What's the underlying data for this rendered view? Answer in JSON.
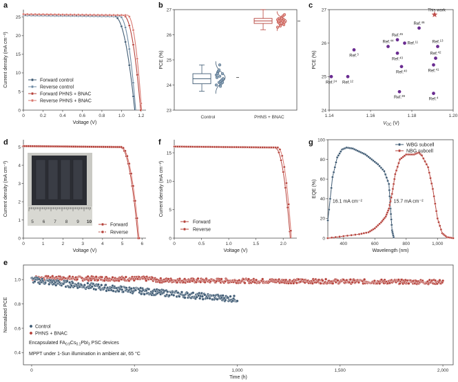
{
  "colors": {
    "control": "#3e5a73",
    "control_light": "#6e8aa3",
    "phns": "#b5413a",
    "phns_light": "#d9776f",
    "star": "#c0504d",
    "ref": "#6a2c91"
  },
  "chart_data": [
    {
      "id": "a",
      "letter": "a",
      "type": "line",
      "xlabel": "Voltage (V)",
      "ylabel": "Current density (mA cm⁻²)",
      "xlim": [
        0,
        1.25
      ],
      "ylim": [
        0,
        27
      ],
      "xticks": [
        "0",
        "0.2",
        "0.4",
        "0.6",
        "0.8",
        "1.0",
        "1.2"
      ],
      "yticks": [
        "0",
        "5",
        "10",
        "15",
        "20",
        "25"
      ],
      "legend_position": "bottom-left",
      "series": [
        {
          "name": "Forward control",
          "jsc": 25.4,
          "voc": 1.135,
          "knee": 0.93
        },
        {
          "name": "Reverse control",
          "jsc": 25.5,
          "voc": 1.145,
          "knee": 0.98
        },
        {
          "name": "Forward PHNS + BNAC",
          "jsc": 25.7,
          "voc": 1.195,
          "knee": 1.02
        },
        {
          "name": "Reverse PHNS + BNAC",
          "jsc": 25.8,
          "voc": 1.205,
          "knee": 1.06
        }
      ]
    },
    {
      "id": "b",
      "letter": "b",
      "type": "box",
      "ylabel": "PCE (%)",
      "ylim": [
        23,
        27
      ],
      "yticks": [
        "23",
        "24",
        "25",
        "26",
        "27"
      ],
      "categories": [
        "Control",
        "PHNS + BNAC"
      ],
      "box_stats": [
        {
          "min": 23.75,
          "q1": 24.05,
          "median": 24.25,
          "q3": 24.45,
          "max": 24.8
        },
        {
          "min": 26.2,
          "q1": 26.45,
          "median": 26.55,
          "q3": 26.65,
          "max": 27.0
        }
      ],
      "scatter": [
        [
          24.0,
          24.1,
          24.2,
          24.3,
          24.35,
          24.45,
          24.5,
          24.15,
          24.25,
          24.55,
          24.05,
          24.4,
          24.6,
          24.2,
          24.3,
          24.8,
          24.1,
          24.45,
          23.95,
          24.25
        ],
        [
          26.3,
          26.4,
          26.45,
          26.5,
          26.55,
          26.6,
          26.65,
          26.7,
          26.5,
          26.45,
          26.55,
          26.6,
          26.35,
          26.75,
          26.5,
          26.6,
          26.4,
          26.55,
          26.65,
          26.8
        ]
      ]
    },
    {
      "id": "c",
      "letter": "c",
      "type": "scatter",
      "xlabel": "V_OC (V)",
      "ylabel": "PCE (%)",
      "xlim": [
        1.14,
        1.2
      ],
      "ylim": [
        24,
        27
      ],
      "xticks": [
        "1.14",
        "1.16",
        "1.18",
        "1.20"
      ],
      "yticks": [
        "24",
        "25",
        "26",
        "27"
      ],
      "points": [
        {
          "label": "Ref.24",
          "x": 1.141,
          "y": 25.0,
          "ref": "Ref.",
          "sup": "24",
          "lpos": "below"
        },
        {
          "label": "Ref.12",
          "x": 1.149,
          "y": 25.0,
          "ref": "Ref.",
          "sup": "12",
          "lpos": "below"
        },
        {
          "label": "Ref.3",
          "x": 1.152,
          "y": 25.8,
          "ref": "Ref.",
          "sup": "3",
          "lpos": "below"
        },
        {
          "label": "Ref.44",
          "x": 1.1685,
          "y": 25.9,
          "ref": "Ref.",
          "sup": "44",
          "lpos": "above"
        },
        {
          "label": "Ref.45",
          "x": 1.173,
          "y": 26.1,
          "ref": "Ref.",
          "sup": "45",
          "lpos": "above"
        },
        {
          "label": "Ref.11",
          "x": 1.1765,
          "y": 26.0,
          "ref": "Ref.",
          "sup": "11",
          "lpos": "right"
        },
        {
          "label": "Ref.46",
          "x": 1.1835,
          "y": 26.45,
          "ref": "Ref.",
          "sup": "46",
          "lpos": "above"
        },
        {
          "label": "Ref.43",
          "x": 1.173,
          "y": 25.7,
          "ref": "Ref.",
          "sup": "43",
          "lpos": "below"
        },
        {
          "label": "Ref.40",
          "x": 1.175,
          "y": 25.3,
          "ref": "Ref.",
          "sup": "40",
          "lpos": "below"
        },
        {
          "label": "Ref.39",
          "x": 1.174,
          "y": 24.55,
          "ref": "Ref.",
          "sup": "39",
          "lpos": "below"
        },
        {
          "label": "Ref.42",
          "x": 1.1915,
          "y": 25.55,
          "ref": "Ref.",
          "sup": "42",
          "lpos": "above"
        },
        {
          "label": "Ref.13",
          "x": 1.1925,
          "y": 25.9,
          "ref": "Ref.",
          "sup": "13",
          "lpos": "above"
        },
        {
          "label": "Ref.41",
          "x": 1.1905,
          "y": 25.35,
          "ref": "Ref.",
          "sup": "41",
          "lpos": "below"
        },
        {
          "label": "Ref.4",
          "x": 1.1905,
          "y": 24.5,
          "ref": "Ref.",
          "sup": "4",
          "lpos": "below"
        }
      ],
      "highlight": {
        "label": "This work",
        "x": 1.191,
        "y": 26.85
      }
    },
    {
      "id": "d",
      "letter": "d",
      "type": "line",
      "xlabel": "Voltage (V)",
      "ylabel": "Current density (mA cm⁻²)",
      "xlim": [
        0,
        6.2
      ],
      "ylim": [
        0,
        5.4
      ],
      "xticks": [
        "0",
        "1",
        "2",
        "3",
        "4",
        "5",
        "6"
      ],
      "yticks": [
        "0",
        "1",
        "2",
        "3",
        "4",
        "5"
      ],
      "legend_position": "bottom-right",
      "inset_ruler_labels": [
        "5",
        "6",
        "7",
        "8",
        "9",
        "10"
      ],
      "series": [
        {
          "name": "Forward",
          "jsc": 5.05,
          "voc": 5.8,
          "knee": 4.9
        },
        {
          "name": "Reverse",
          "jsc": 5.05,
          "voc": 5.85,
          "knee": 4.95
        }
      ]
    },
    {
      "id": "f",
      "letter": "f",
      "type": "line",
      "xlabel": "Voltage (V)",
      "ylabel": "Current density (mA cm⁻²)",
      "xlim": [
        0,
        2.25
      ],
      "ylim": [
        0,
        17.3
      ],
      "xticks": [
        "0",
        "0.5",
        "1.0",
        "1.5",
        "2.0"
      ],
      "yticks": [
        "0",
        "5",
        "10",
        "15"
      ],
      "legend_position": "bottom-left",
      "series": [
        {
          "name": "Forward",
          "jsc": 16.1,
          "voc": 2.13,
          "knee": 1.85
        },
        {
          "name": "Reverse",
          "jsc": 16.1,
          "voc": 2.15,
          "knee": 1.9
        }
      ]
    },
    {
      "id": "g",
      "letter": "g",
      "type": "line",
      "xlabel": "Wavelength (nm)",
      "ylabel": "EQE (%)",
      "xlim": [
        300,
        1100
      ],
      "ylim": [
        0,
        100
      ],
      "xticks": [
        "400",
        "600",
        "800",
        "1,000"
      ],
      "yticks": [
        "0",
        "20",
        "40",
        "60",
        "80",
        "100"
      ],
      "legend_position": "top-right",
      "series": [
        {
          "name": "WBG subcell",
          "x": [
            300,
            330,
            360,
            390,
            420,
            460,
            500,
            540,
            580,
            620,
            660,
            690,
            700,
            710,
            720
          ],
          "y": [
            18,
            62,
            82,
            90,
            92,
            91,
            88,
            85,
            80,
            75,
            68,
            55,
            30,
            8,
            1
          ]
        },
        {
          "name": "NBG subcell",
          "x": [
            300,
            400,
            500,
            560,
            600,
            640,
            670,
            690,
            710,
            730,
            760,
            800,
            850,
            880,
            900,
            940,
            970,
            1000,
            1030,
            1060,
            1100
          ],
          "y": [
            0,
            2,
            4,
            6,
            10,
            16,
            22,
            30,
            45,
            65,
            80,
            85,
            85,
            87,
            84,
            72,
            50,
            20,
            5,
            1,
            0
          ]
        }
      ],
      "annotations": [
        "16.1 mA cm⁻²",
        "15.7 mA cm⁻²"
      ]
    },
    {
      "id": "e",
      "letter": "e",
      "type": "scatter",
      "xlabel": "Time (h)",
      "ylabel": "Normalized PCE",
      "xlim": [
        -40,
        2050
      ],
      "ylim": [
        0.3,
        1.12
      ],
      "xticks": [
        "0",
        "500",
        "1,000",
        "1,500",
        "2,000"
      ],
      "yticks": [
        "0.4",
        "0.6",
        "0.8",
        "1.0"
      ],
      "legend_position": "bottom-left",
      "series": [
        {
          "name": "Control",
          "t_end": 1000,
          "start": 1.0,
          "end": 0.84
        },
        {
          "name": "PHNS + BNAC",
          "t_end": 2000,
          "start": 1.0,
          "end": 0.98
        }
      ],
      "notes": [
        {
          "parts": [
            [
              "Encapsulated FA",
              ""
            ],
            [
              "0.9",
              ""
            ],
            [
              "Cs",
              "sub"
            ],
            [
              "0.1",
              ""
            ],
            [
              "PbI",
              "sub"
            ],
            [
              "3",
              ""
            ],
            [
              " PSC devices",
              "sub"
            ]
          ]
        },
        {
          "text": "MPPT under 1-Sun illumination in ambient air, 65 °C"
        }
      ]
    }
  ]
}
